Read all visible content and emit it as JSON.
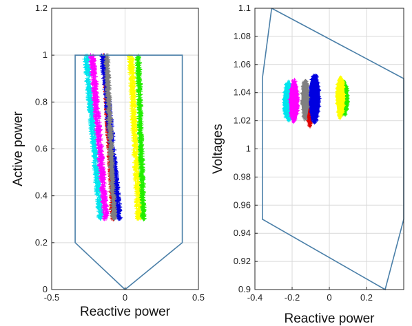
{
  "chart_data": [
    {
      "type": "scatter",
      "xlabel": "Reactive power",
      "ylabel": "Active power",
      "xlim": [
        -0.5,
        0.5
      ],
      "ylim": [
        0,
        1.2
      ],
      "xticks": [
        -0.5,
        0,
        0.5
      ],
      "xtick_labels": [
        "-0.5",
        "0",
        "0.5"
      ],
      "yticks": [
        0,
        0.2,
        0.4,
        0.6,
        0.8,
        1,
        1.2
      ],
      "ytick_labels": [
        "0",
        "0.2",
        "0.4",
        "0.6",
        "0.8",
        "1",
        "1.2"
      ],
      "grid": true,
      "boundary": {
        "x": [
          0,
          -0.34,
          -0.34,
          0.39,
          0.39,
          0
        ],
        "y": [
          0,
          0.2,
          1.0,
          1.0,
          0.2,
          0
        ]
      },
      "series": [
        {
          "color": "#00e5ee",
          "x_top": -0.265,
          "x_bottom": -0.165,
          "y_top": 1.0,
          "y_bottom": 0.3,
          "width": 0.03
        },
        {
          "color": "#ff00ff",
          "x_top": -0.225,
          "x_bottom": -0.13,
          "y_top": 1.0,
          "y_bottom": 0.3,
          "width": 0.03
        },
        {
          "color": "#e00000",
          "x_top": -0.14,
          "x_bottom": -0.08,
          "y_top": 1.0,
          "y_bottom": 0.3,
          "width": 0.02
        },
        {
          "color": "#0000e0",
          "x_top": -0.15,
          "x_bottom": -0.04,
          "y_top": 1.0,
          "y_bottom": 0.3,
          "width": 0.03
        },
        {
          "color": "#808080",
          "x_top": -0.125,
          "x_bottom": -0.075,
          "y_top": 1.0,
          "y_bottom": 0.3,
          "width": 0.02
        },
        {
          "color": "#ffff00",
          "x_top": 0.04,
          "x_bottom": 0.095,
          "y_top": 1.0,
          "y_bottom": 0.3,
          "width": 0.03
        },
        {
          "color": "#22ee00",
          "x_top": 0.09,
          "x_bottom": 0.125,
          "y_top": 1.0,
          "y_bottom": 0.3,
          "width": 0.02
        }
      ]
    },
    {
      "type": "scatter",
      "xlabel": "Reactive power",
      "ylabel": "Voltages",
      "xlim": [
        -0.4,
        0.4
      ],
      "ylim": [
        0.9,
        1.1
      ],
      "xticks": [
        -0.4,
        -0.2,
        0,
        0.2
      ],
      "xtick_labels": [
        "-0.4",
        "-0.2",
        "0",
        "0.2"
      ],
      "yticks": [
        0.9,
        0.92,
        0.94,
        0.96,
        0.98,
        1,
        1.02,
        1.04,
        1.06,
        1.08,
        1.1
      ],
      "ytick_labels": [
        "0.9",
        "0.92",
        "0.94",
        "0.96",
        "0.98",
        "1",
        "1.02",
        "1.04",
        "1.06",
        "1.08",
        "1.1"
      ],
      "grid": true,
      "boundary": {
        "x": [
          -0.31,
          0.4,
          0.4,
          0.3,
          -0.36,
          -0.36,
          -0.31
        ],
        "y": [
          1.1,
          1.05,
          0.95,
          0.9,
          0.95,
          1.05,
          1.1
        ]
      },
      "series": [
        {
          "color": "#00e5ee",
          "cx": -0.22,
          "cy": 1.034,
          "rx": 0.055,
          "ry": 0.014
        },
        {
          "color": "#e00000",
          "cx": -0.105,
          "cy": 1.027,
          "rx": 0.03,
          "ry": 0.011
        },
        {
          "color": "#0000e0",
          "cx": -0.08,
          "cy": 1.036,
          "rx": 0.06,
          "ry": 0.017
        },
        {
          "color": "#808080",
          "cx": -0.13,
          "cy": 1.035,
          "rx": 0.04,
          "ry": 0.014
        },
        {
          "color": "#ff00ff",
          "cx": -0.19,
          "cy": 1.034,
          "rx": 0.05,
          "ry": 0.015
        },
        {
          "color": "#22ee00",
          "cx": 0.08,
          "cy": 1.036,
          "rx": 0.045,
          "ry": 0.012
        },
        {
          "color": "#ffff00",
          "cx": 0.06,
          "cy": 1.037,
          "rx": 0.045,
          "ry": 0.015
        }
      ]
    }
  ]
}
